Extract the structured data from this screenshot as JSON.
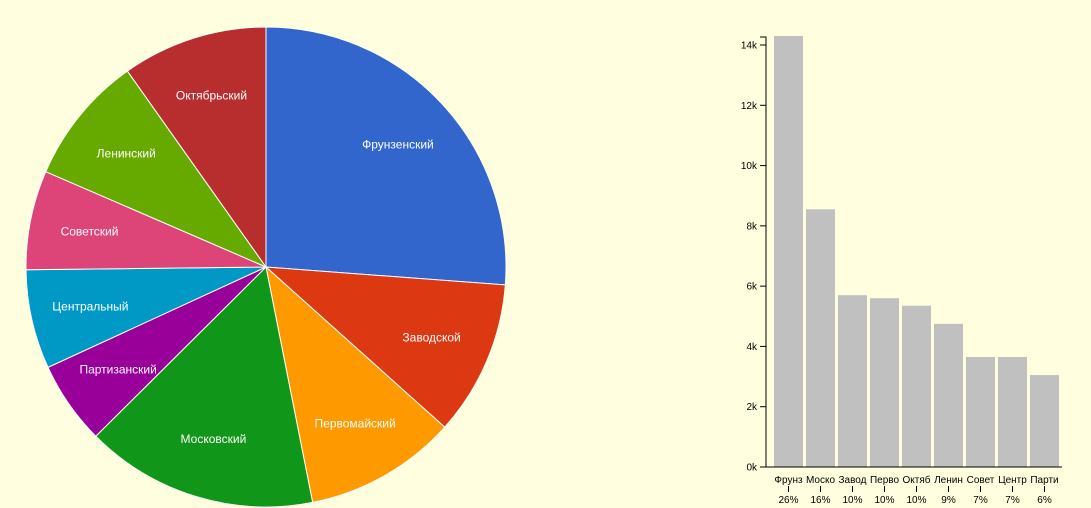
{
  "chart_data": [
    {
      "type": "pie",
      "categories": [
        "Фрунзенский",
        "Заводской",
        "Первомайский",
        "Московский",
        "Партизанский",
        "Центральный",
        "Советский",
        "Ленинский",
        "Октябрьский"
      ],
      "values": [
        14300,
        5700,
        5600,
        8550,
        3050,
        3650,
        3650,
        4750,
        5350
      ],
      "colors": [
        "#3366cc",
        "#dc3912",
        "#ff9900",
        "#109618",
        "#990099",
        "#0099c6",
        "#dd4477",
        "#66aa00",
        "#b82e2e"
      ]
    },
    {
      "type": "bar",
      "categories": [
        "Фрунз",
        "Моско",
        "Завод",
        "Перво",
        "Октяб",
        "Ленин",
        "Совет",
        "Центр",
        "Парти"
      ],
      "percent_labels": [
        "26%",
        "16%",
        "10%",
        "10%",
        "10%",
        "9%",
        "7%",
        "7%",
        "6%"
      ],
      "values": [
        14300,
        8550,
        5700,
        5600,
        5350,
        4750,
        3650,
        3650,
        3050
      ],
      "ylim": [
        0,
        14000
      ],
      "yticks": [
        0,
        2000,
        4000,
        6000,
        8000,
        10000,
        12000,
        14000
      ],
      "ytick_labels": [
        "0k",
        "2k",
        "4k",
        "6k",
        "8k",
        "10k",
        "12k",
        "14k"
      ],
      "bar_color": "#c0c0c0"
    }
  ]
}
